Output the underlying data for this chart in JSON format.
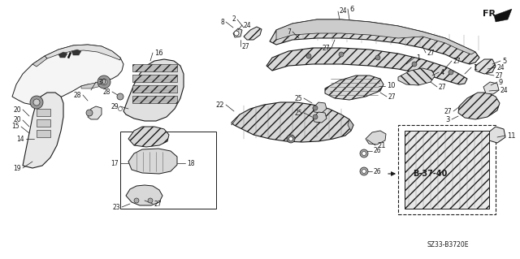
{
  "bg_color": "#ffffff",
  "line_color": "#1a1a1a",
  "diagram_code": "SZ33-B3720E",
  "fig_w": 6.4,
  "fig_h": 3.19,
  "dpi": 100
}
